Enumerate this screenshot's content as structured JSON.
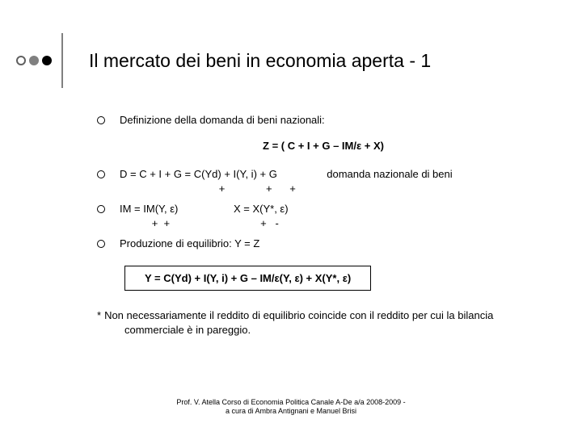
{
  "colors": {
    "dot1_border": "#606060",
    "dot1_fill": "#ffffff",
    "dot2_fill": "#808080",
    "dot3_fill": "#000000",
    "sep": "#808080"
  },
  "title": "Il mercato dei beni in economia aperta - 1",
  "items": {
    "def": "Definizione della domanda di beni nazionali:",
    "eqZ": "Z = ( C + I + G – IM/ε + X)",
    "d_line1": "D = C + I + G = C(Yd) + I(Y, i) + G                 domanda nazionale di beni",
    "d_line2": "                                  +              +      +",
    "im_line1": "IM = IM(Y, ε)                   X = X(Y*, ε)",
    "im_line2": "           +  +                               +   -",
    "prod": "Produzione di equilibrio: Y = Z",
    "boxed": "Y = C(Yd) + I(Y, i) + G – IM/ε(Y, ε) + X(Y*, ε)"
  },
  "note": {
    "line1": "Non necessariamente il reddito di equilibrio coincide con il reddito per cui la bilancia",
    "line2": "commerciale è in pareggio."
  },
  "footer": {
    "line1": "Prof. V. Atella Corso di Economia Politica Canale A-De a/a 2008-2009 -",
    "line2": "a cura di Ambra Antignani e Manuel Brisi"
  }
}
